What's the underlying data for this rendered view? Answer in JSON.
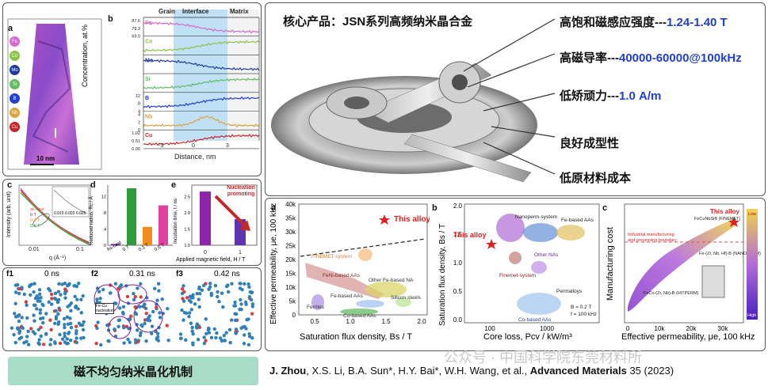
{
  "top_left": {
    "panel_a_label": "a",
    "panel_b_label": "b",
    "element_labels": [
      "Fe",
      "Co",
      "Mo",
      "Si",
      "B",
      "Nb",
      "Cu"
    ],
    "element_colors": [
      "#d36bd0",
      "#8bc34a",
      "#1e3a9e",
      "#5fbd5f",
      "#1f3fd1",
      "#d9a441",
      "#c62828"
    ],
    "scale_bar": "10 nm",
    "regions": [
      "Grain",
      "Interface",
      "Matrix"
    ],
    "row_ticks": [
      [
        "87.6",
        "78.3",
        "69.0"
      ],
      [
        "",
        "",
        ""
      ],
      [
        "",
        ""
      ],
      [
        "",
        "",
        ""
      ],
      [
        "12",
        "8",
        "4"
      ],
      [
        "4",
        "2",
        "0"
      ],
      [
        "1.02",
        "0.51",
        "0.00"
      ]
    ],
    "y_axis": "Concentration, at.%",
    "x_ticks": [
      "-3",
      "0",
      "3"
    ],
    "x_axis": "Distance, nm"
  },
  "mid_left": {
    "c_label": "c",
    "c_legend": [
      "as-cast",
      "0 T",
      "0.1 T",
      "0.6 T"
    ],
    "c_ylabel": "Intensity (arb. unit)",
    "c_xlabel": "q (Å⁻¹)",
    "c_xticks": [
      "0.01",
      "0.1"
    ],
    "c_inset_ticks": [
      "0.015",
      "0.020",
      "0.025"
    ],
    "d_label": "d",
    "d_ylabel": "Reduced radius, Rc / Å",
    "d_categories": [
      "As-cast",
      "0 T",
      "0.1 T",
      "0.6 T"
    ],
    "d_values": [
      0.3,
      14,
      4.5,
      9.8
    ],
    "d_colors": [
      "#7b1fa2",
      "#2e9b3a",
      "#f28c1c",
      "#e040a0"
    ],
    "d_yticks": [
      "0",
      "4",
      "8",
      "12"
    ],
    "e_label": "e",
    "e_ylabel": "Incubation time, t / ns",
    "e_xlabel": "Applied magnetic field, H / T",
    "e_xticks": [
      "0",
      "1"
    ],
    "e_yticks": [
      "1.0",
      "1.5",
      "2.0",
      "2.5"
    ],
    "e_values": [
      2.65,
      1.8
    ],
    "e_annotation": "Nucleation promoting"
  },
  "bottom_left": {
    "frames": [
      {
        "label": "f1",
        "time": "0 ns"
      },
      {
        "label": "f2",
        "time": "0.31 ns"
      },
      {
        "label": "f3",
        "time": "0.42 ns"
      }
    ],
    "f2_note": "Fe-Cu nucleation"
  },
  "top_right": {
    "title": "核心产品：JSN系列高频纳米晶合金",
    "features": [
      {
        "label": "高饱和磁感应强度---",
        "value": "1.24-1.40 T"
      },
      {
        "label": "高磁导率---",
        "value": "40000-60000@100kHz"
      },
      {
        "label": "低矫顽力---",
        "value": "1.0 A/m"
      },
      {
        "label": "良好成型性",
        "value": ""
      },
      {
        "label": "低原材料成本",
        "value": ""
      }
    ]
  },
  "chart_a": {
    "label": "a",
    "ylabel": "Effective permeability, μe, 100 kHz",
    "xlabel": "Saturation flux density, Bs / T",
    "yticks": [
      "0",
      "5k",
      "10k",
      "15k",
      "20k",
      "25k",
      "30k",
      "35k",
      "40k"
    ],
    "xticks": [
      "0.5",
      "1.0",
      "1.5",
      "2.0"
    ],
    "this_alloy": "This alloy",
    "regions": [
      "FINEMET-system",
      "FeNi-based AAs",
      "Other Fe-based NA",
      "Fe-based AAs",
      "Silicon steels",
      "Ferrites",
      "Co-based AAs"
    ]
  },
  "chart_b": {
    "label": "b",
    "ylabel": "Saturation flux density, Bs / T",
    "xlabel": "Core loss, Pcv / kW/m³",
    "yticks": [
      "0.0",
      "0.5",
      "1.0",
      "1.5",
      "2.0"
    ],
    "xticks": [
      "100",
      "1000"
    ],
    "this_alloy": "This alloy",
    "regions": [
      "Nanoperm-system",
      "Fe-based AAs",
      "Other NAs",
      "Finemet-system",
      "Permalloys",
      "Co-based AAs"
    ],
    "conditions": [
      "B = 0.2 T",
      "f = 100 kHz"
    ]
  },
  "chart_c": {
    "label": "c",
    "ylabel": "Manufacturing cost",
    "xlabel": "Effective permeability, μe, 100 kHz",
    "xticks": [
      "0",
      "10k",
      "20k",
      "30k"
    ],
    "this_alloy": "This alloy",
    "boundary": [
      "Industrial manufacturing",
      "and processing boundary"
    ],
    "points": [
      "FeCuNbSiB (FINEMET)",
      "Fe-(Zr, Nb, Hf)-B (NANOPERM)",
      "FeCo-(Zr, Nb)-B (HITPERM)"
    ],
    "scale_low": "Low",
    "scale_high": "High"
  },
  "footer": {
    "label": "磁不均匀纳米晶化机制",
    "ref_bold1": "J. Zhou",
    "ref_mid": ", X.S. Li, B.A. Sun*, H.Y. Bai*, W.H. Wang,  et al., ",
    "ref_bold2": "Advanced Materials",
    "ref_end": " 35 (2023)",
    "watermark": "公众号 · 中国科学院东莞材料所"
  }
}
